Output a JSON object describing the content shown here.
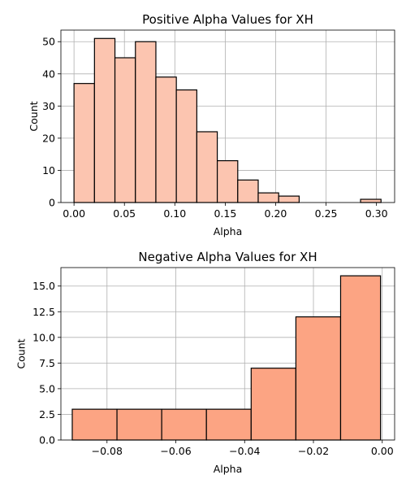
{
  "chart_data": [
    {
      "type": "bar",
      "title": "Positive Alpha Values for XH",
      "xlabel": "Alpha",
      "ylabel": "Count",
      "bar_color": "#fcc5b0",
      "edge_color": "#000000",
      "grid": true,
      "xlim": [
        -0.013,
        0.318
      ],
      "ylim": [
        0,
        53.6
      ],
      "bin_edges": [
        0.0,
        0.0203,
        0.0406,
        0.0609,
        0.0812,
        0.1015,
        0.1218,
        0.1421,
        0.1624,
        0.1827,
        0.203,
        0.2233,
        0.2436,
        0.2639,
        0.2842,
        0.3045
      ],
      "values": [
        37,
        51,
        45,
        50,
        39,
        35,
        22,
        13,
        7,
        3,
        2,
        0,
        0,
        0,
        1
      ],
      "xticks": [
        0.0,
        0.05,
        0.1,
        0.15,
        0.2,
        0.25,
        0.3
      ],
      "xtick_labels": [
        "0.00",
        "0.05",
        "0.10",
        "0.15",
        "0.20",
        "0.25",
        "0.30"
      ],
      "yticks": [
        0,
        10,
        20,
        30,
        40,
        50
      ],
      "ytick_labels": [
        "0",
        "10",
        "20",
        "30",
        "40",
        "50"
      ]
    },
    {
      "type": "bar",
      "title": "Negative Alpha Values for XH",
      "xlabel": "Alpha",
      "ylabel": "Count",
      "bar_color": "#fca483",
      "edge_color": "#000000",
      "grid": true,
      "xlim": [
        -0.0934,
        0.0036
      ],
      "ylim": [
        0,
        16.8
      ],
      "bin_edges": [
        -0.0901,
        -0.0771,
        -0.0641,
        -0.0511,
        -0.0381,
        -0.0251,
        -0.0121,
        -0.0005
      ],
      "values": [
        3,
        3,
        3,
        3,
        7,
        12,
        16
      ],
      "xticks": [
        -0.08,
        -0.06,
        -0.04,
        -0.02,
        0.0
      ],
      "xtick_labels": [
        "−0.08",
        "−0.06",
        "−0.04",
        "−0.02",
        "0.00"
      ],
      "yticks": [
        0,
        2.5,
        5,
        7.5,
        10,
        12.5,
        15
      ],
      "ytick_labels": [
        "0.0",
        "2.5",
        "5.0",
        "7.5",
        "10.0",
        "12.5",
        "15.0"
      ]
    }
  ]
}
